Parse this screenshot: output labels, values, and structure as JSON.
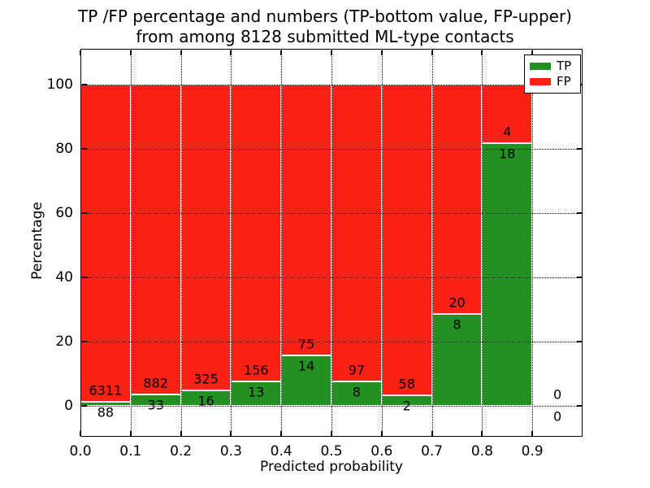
{
  "chart_data": {
    "type": "bar",
    "variant": "stacked-100-percent-histogram",
    "title_lines": [
      "TP /FP percentage and numbers (TP-bottom value, FP-upper)",
      "from among 8128 submitted ML-type contacts"
    ],
    "xlabel": "Predicted probability",
    "ylabel": "Percentage",
    "xlim": [
      0.0,
      1.0
    ],
    "ylim": [
      -10,
      111
    ],
    "grid": "dotted black, drawn above bars",
    "legend_position": "upper-right",
    "total_submitted": 8128,
    "xticks": [
      {
        "v": 0.0,
        "label": "0.0"
      },
      {
        "v": 0.1,
        "label": "0.1"
      },
      {
        "v": 0.2,
        "label": "0.2"
      },
      {
        "v": 0.3,
        "label": "0.3"
      },
      {
        "v": 0.4,
        "label": "0.4"
      },
      {
        "v": 0.5,
        "label": "0.5"
      },
      {
        "v": 0.6,
        "label": "0.6"
      },
      {
        "v": 0.7,
        "label": "0.7"
      },
      {
        "v": 0.8,
        "label": "0.8"
      },
      {
        "v": 0.9,
        "label": "0.9"
      }
    ],
    "yticks": [
      {
        "v": 0,
        "label": "0"
      },
      {
        "v": 20,
        "label": "20"
      },
      {
        "v": 40,
        "label": "40"
      },
      {
        "v": 60,
        "label": "60"
      },
      {
        "v": 80,
        "label": "80"
      },
      {
        "v": 100,
        "label": "100"
      }
    ],
    "legend": {
      "entries": [
        {
          "label": "TP",
          "color": "#229122"
        },
        {
          "label": "FP",
          "color": "#fa2116"
        }
      ]
    },
    "bins": [
      {
        "x0": 0.0,
        "x1": 0.1,
        "tp": 88,
        "fp": 6311,
        "tp_percent": 1.38
      },
      {
        "x0": 0.1,
        "x1": 0.2,
        "tp": 33,
        "fp": 882,
        "tp_percent": 3.61
      },
      {
        "x0": 0.2,
        "x1": 0.3,
        "tp": 16,
        "fp": 325,
        "tp_percent": 4.69
      },
      {
        "x0": 0.3,
        "x1": 0.4,
        "tp": 13,
        "fp": 156,
        "tp_percent": 7.69
      },
      {
        "x0": 0.4,
        "x1": 0.5,
        "tp": 14,
        "fp": 75,
        "tp_percent": 15.73
      },
      {
        "x0": 0.5,
        "x1": 0.6,
        "tp": 8,
        "fp": 97,
        "tp_percent": 7.62
      },
      {
        "x0": 0.6,
        "x1": 0.7,
        "tp": 2,
        "fp": 58,
        "tp_percent": 3.33
      },
      {
        "x0": 0.7,
        "x1": 0.8,
        "tp": 8,
        "fp": 20,
        "tp_percent": 28.57
      },
      {
        "x0": 0.8,
        "x1": 0.9,
        "tp": 18,
        "fp": 4,
        "tp_percent": 81.82
      },
      {
        "x0": 0.9,
        "x1": 1.0,
        "tp": 0,
        "fp": 0,
        "tp_percent": 0
      }
    ],
    "colors": {
      "tp": "#229122",
      "fp": "#fa2116",
      "grid": "#000000",
      "bar_edge": "#ffffff",
      "frame": "#000000",
      "background": "#ffffff"
    }
  }
}
